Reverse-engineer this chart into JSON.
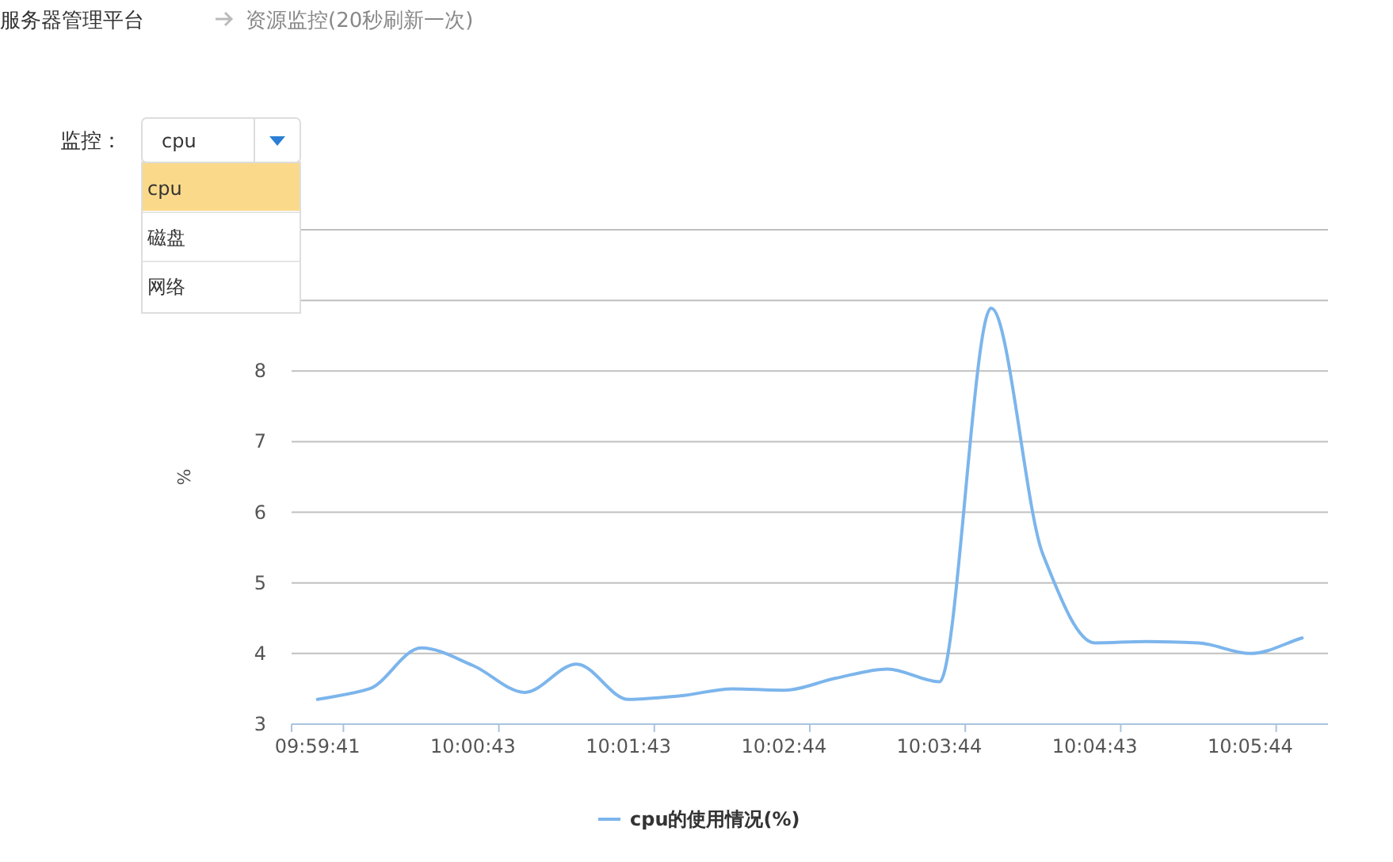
{
  "chart_data": {
    "type": "line",
    "title": "服务器管理平台",
    "subtitle": "资源监控(20秒刷新一次)",
    "ylabel": "%",
    "categories": [
      "09:59:41",
      null,
      null,
      "10:00:43",
      null,
      null,
      "10:01:43",
      null,
      null,
      "10:02:44",
      null,
      null,
      "10:03:44",
      null,
      null,
      "10:04:43",
      null,
      null,
      "10:05:44",
      null
    ],
    "series": [
      {
        "name": "cpu的使用情况(%)",
        "color": "#7cb5ec",
        "values": [
          3.35,
          3.5,
          4.08,
          3.83,
          3.45,
          3.85,
          3.35,
          3.4,
          3.5,
          3.48,
          3.65,
          3.78,
          3.6,
          8.89,
          5.4,
          4.15,
          4.17,
          4.15,
          4.0,
          4.22
        ]
      }
    ],
    "ylim": [
      3,
      10
    ],
    "yticks": [
      3,
      4,
      5,
      6,
      7,
      8,
      {
        "value": 9,
        "label": null
      },
      {
        "value": 10,
        "label": null
      }
    ],
    "grid": "y",
    "legend": "bottom",
    "marker": "none",
    "line_style": "solid",
    "annotations": [
      "监控：",
      "cpu",
      "cpu",
      "磁盘",
      "网络"
    ]
  }
}
